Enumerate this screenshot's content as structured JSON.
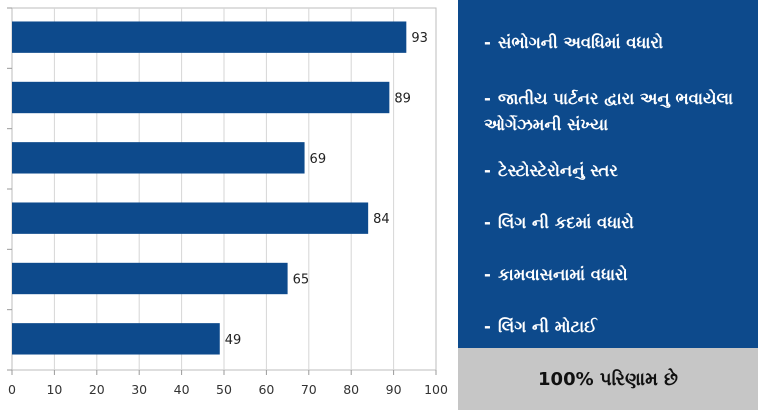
{
  "chart_data": {
    "type": "bar",
    "orientation": "horizontal",
    "categories": [
      "- સંભોગની અવધિમાં વધારો",
      "- જાતીય પાર્ટનર દ્વારા અનુભવાયેલા ઓર્ગેઝમની સંખ્યા",
      "- ટેસ્ટોસ્ટેરોનનું સ્તર",
      "- લિંગ ની કદમાં વધારો",
      "- કામવાસનામાં વધારો",
      "- લિંગ ની મોટાઈ"
    ],
    "values": [
      93,
      89,
      69,
      84,
      65,
      49
    ],
    "xlim": [
      0,
      100
    ],
    "x_ticks": [
      0,
      10,
      20,
      30,
      40,
      50,
      60,
      70,
      80,
      90,
      100
    ],
    "grid": true,
    "bar_color": "#0d4a8c"
  },
  "labels": [
    {
      "dash": "-",
      "text": "સંભોગની અવધિમાં વધારો"
    },
    {
      "dash": "-",
      "text": "જાતીય પાર્ટનર દ્વારા અનુ ભવાયેલા ઓર્ગેઝમની સંખ્યા"
    },
    {
      "dash": "-",
      "text": "ટેસ્ટોસ્ટેરોનનું સ્તર"
    },
    {
      "dash": "-",
      "text": "લિંગ ની કદમાં વધારો"
    },
    {
      "dash": "-",
      "text": "કામવાસનામાં વધારો"
    },
    {
      "dash": "-",
      "text": "લિંગ ની મોટાઈ"
    }
  ],
  "result_text": "100% પરિણામ છે",
  "colors": {
    "panel_bg": "#0d4a8c",
    "result_bg": "#c6c6c6",
    "bar": "#0d4a8c"
  }
}
